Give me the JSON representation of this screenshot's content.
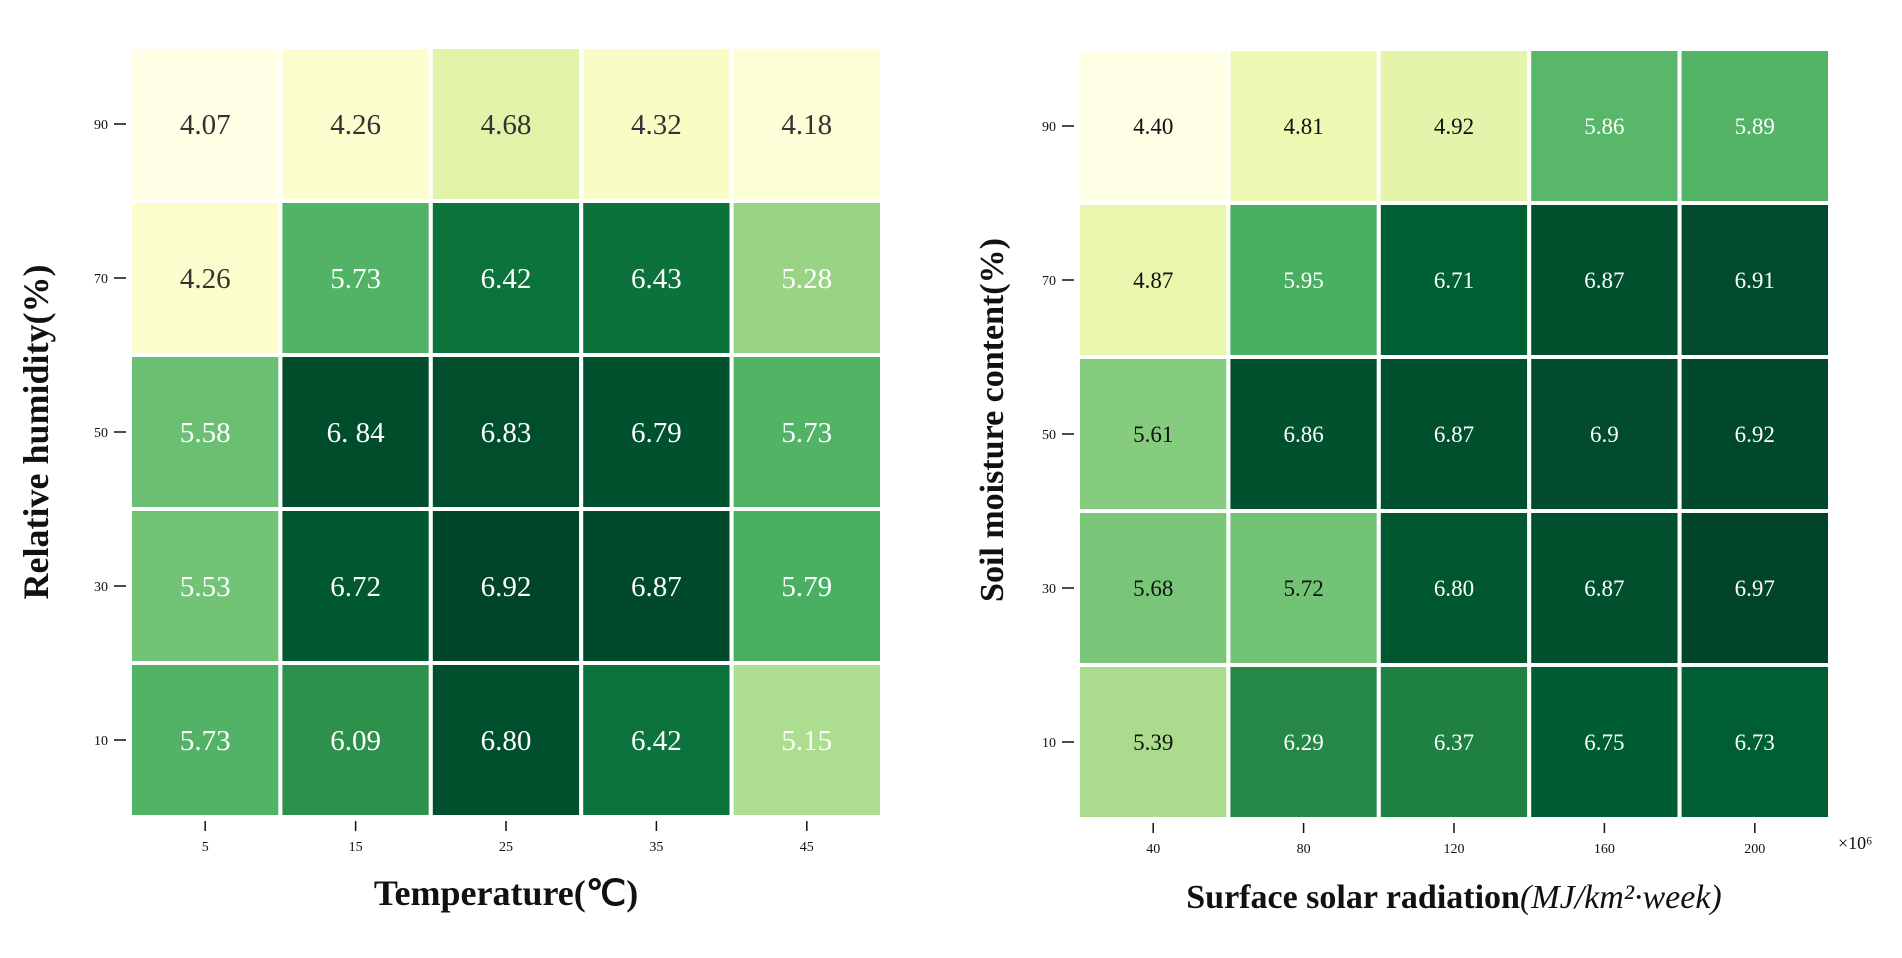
{
  "chart_data": [
    {
      "type": "heatmap",
      "x_categories": [
        "5",
        "15",
        "25",
        "35",
        "45"
      ],
      "y_categories": [
        "90",
        "70",
        "50",
        "30",
        "10"
      ],
      "values": [
        [
          4.07,
          4.26,
          4.68,
          4.32,
          4.18
        ],
        [
          4.26,
          5.73,
          6.42,
          6.43,
          5.28
        ],
        [
          5.58,
          6.84,
          6.83,
          6.79,
          5.73
        ],
        [
          5.53,
          6.72,
          6.92,
          6.87,
          5.79
        ],
        [
          5.73,
          6.09,
          6.8,
          6.42,
          5.15
        ]
      ],
      "labels": [
        [
          "4.07",
          "4.26",
          "4.68",
          "4.32",
          "4.18"
        ],
        [
          "4.26",
          "5.73",
          "6.42",
          "6.43",
          "5.28"
        ],
        [
          "5.58",
          "6. 84",
          "6.83",
          "6.79",
          "5.73"
        ],
        [
          "5.53",
          "6.72",
          "6.92",
          "6.87",
          "5.79"
        ],
        [
          "5.73",
          "6.09",
          "6.80",
          "6.42",
          "5.15"
        ]
      ],
      "xlabel": "Temperature(℃)",
      "ylabel": "Relative humidity(%)",
      "colormap": "Greens",
      "legend": false
    },
    {
      "type": "heatmap",
      "x_categories": [
        "40",
        "80",
        "120",
        "160",
        "200"
      ],
      "x_multiplier": "×10⁶",
      "y_categories": [
        "90",
        "70",
        "50",
        "30",
        "10"
      ],
      "values": [
        [
          4.4,
          4.81,
          4.92,
          5.86,
          5.89
        ],
        [
          4.87,
          5.95,
          6.71,
          6.87,
          6.91
        ],
        [
          5.61,
          6.86,
          6.87,
          6.9,
          6.92
        ],
        [
          5.68,
          5.72,
          6.8,
          6.87,
          6.97
        ],
        [
          5.39,
          6.29,
          6.37,
          6.75,
          6.73
        ]
      ],
      "labels": [
        [
          "4.40",
          "4.81",
          "4.92",
          "5.86",
          "5.89"
        ],
        [
          "4.87",
          "5.95",
          "6.71",
          "6.87",
          "6.91"
        ],
        [
          "5.61",
          "6.86",
          "6.87",
          "6.9",
          "6.92"
        ],
        [
          "5.68",
          "5.72",
          "6.80",
          "6.87",
          "6.97"
        ],
        [
          "5.39",
          "6.29",
          "6.37",
          "6.75",
          "6.73"
        ]
      ],
      "xlabel": "Surface solar radiation",
      "xlabel_units": "(MJ/km²·week)",
      "ylabel": "Soil moisture content(%)",
      "colormap": "Greens",
      "legend": false
    }
  ]
}
